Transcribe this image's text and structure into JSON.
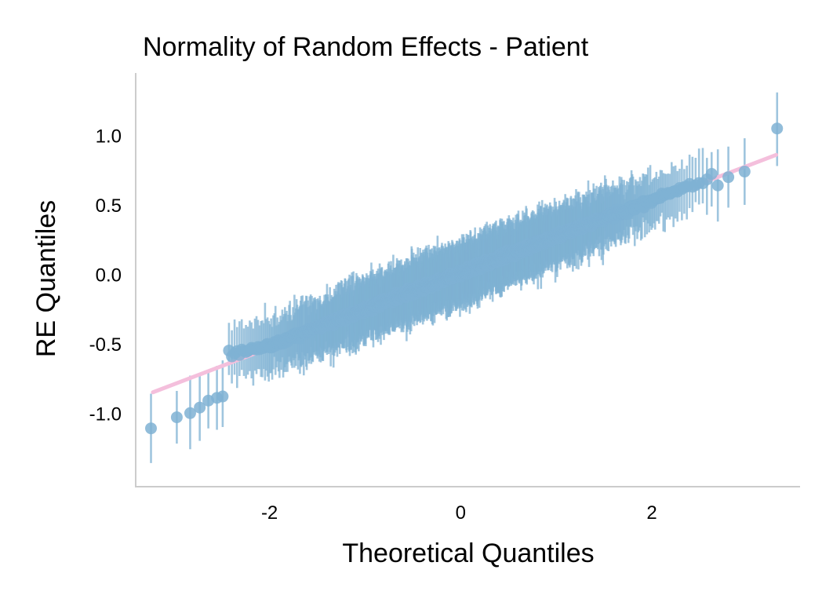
{
  "chart_data": {
    "type": "scatter",
    "title": "Normality of Random Effects - Patient",
    "xlabel": "Theoretical Quantiles",
    "ylabel": "RE Quantiles",
    "xlim": [
      -3.4,
      3.55
    ],
    "ylim": [
      -1.53,
      1.45
    ],
    "x_ticks": [
      {
        "value": -2,
        "label": "-2"
      },
      {
        "value": 0,
        "label": "0"
      },
      {
        "value": 2,
        "label": "2"
      }
    ],
    "y_ticks": [
      {
        "value": 1.0,
        "label": "1.0"
      },
      {
        "value": 0.5,
        "label": "0.5"
      },
      {
        "value": 0.0,
        "label": "0.0"
      },
      {
        "value": -0.5,
        "label": "-0.5"
      },
      {
        "value": -1.0,
        "label": "-1.0"
      }
    ],
    "grid": false,
    "reference_line": {
      "from": [
        -3.22,
        -0.85
      ],
      "to": [
        3.3,
        0.86
      ],
      "color": "#f4bfdc"
    },
    "series": [
      {
        "marker_color": "#7fb1d3",
        "error_bar_color": "#7fb1d3",
        "n_points": 1500,
        "point_values_note": "",
        "points": [
          {
            "x": -3.24,
            "y": -1.11,
            "lo": -1.36,
            "hi": -0.86
          },
          {
            "x": -2.97,
            "y": -1.03,
            "lo": -1.22,
            "hi": -0.84
          },
          {
            "x": -2.83,
            "y": -1.0,
            "lo": -1.26,
            "hi": -0.73
          },
          {
            "x": -2.73,
            "y": -0.96,
            "lo": -1.2,
            "hi": -0.72
          },
          {
            "x": -2.64,
            "y": -0.91,
            "lo": -1.11,
            "hi": -0.7
          },
          {
            "x": -2.55,
            "y": -0.89,
            "lo": -1.12,
            "hi": -0.66
          },
          {
            "x": -2.49,
            "y": -0.88,
            "lo": -1.1,
            "hi": -0.62
          },
          {
            "x": 2.69,
            "y": 0.64,
            "lo": 0.38,
            "hi": 0.9
          },
          {
            "x": 2.8,
            "y": 0.7,
            "lo": 0.48,
            "hi": 0.92
          },
          {
            "x": 2.97,
            "y": 0.74,
            "lo": 0.5,
            "hi": 0.98
          },
          {
            "x": 3.31,
            "y": 1.05,
            "lo": 0.78,
            "hi": 1.31
          }
        ]
      }
    ]
  }
}
